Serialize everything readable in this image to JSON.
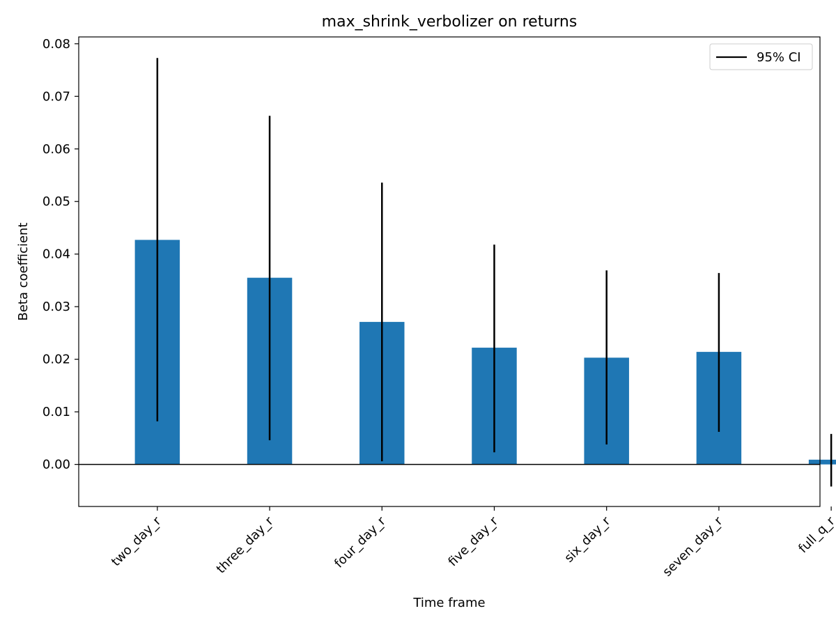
{
  "chart_data": {
    "type": "bar",
    "title": "max_shrink_verbolizer on returns",
    "xlabel": "Time frame",
    "ylabel": "Beta coefficient",
    "categories": [
      "two_day_r",
      "three_day_r",
      "four_day_r",
      "five_day_r",
      "six_day_r",
      "seven_day_r",
      "full_q_r"
    ],
    "values": [
      0.0427,
      0.0355,
      0.0271,
      0.0222,
      0.0203,
      0.0214,
      0.0009
    ],
    "ci_lower": [
      0.0082,
      0.0046,
      0.0006,
      0.0023,
      0.0038,
      0.0062,
      -0.0042
    ],
    "ci_upper": [
      0.0773,
      0.0663,
      0.0536,
      0.0418,
      0.0369,
      0.0364,
      0.0058
    ],
    "ylim": [
      -0.008,
      0.0813
    ],
    "yticks": [
      "0.00",
      "0.01",
      "0.02",
      "0.03",
      "0.04",
      "0.05",
      "0.06",
      "0.07",
      "0.08"
    ],
    "ytick_values": [
      0,
      0.01,
      0.02,
      0.03,
      0.04,
      0.05,
      0.06,
      0.07,
      0.08
    ],
    "legend": {
      "label": "95% CI",
      "placement": "top-right"
    },
    "grid": false,
    "colors": {
      "bar": "#1f77b4",
      "errorbar": "#000000",
      "zero_line": "#000000"
    }
  }
}
